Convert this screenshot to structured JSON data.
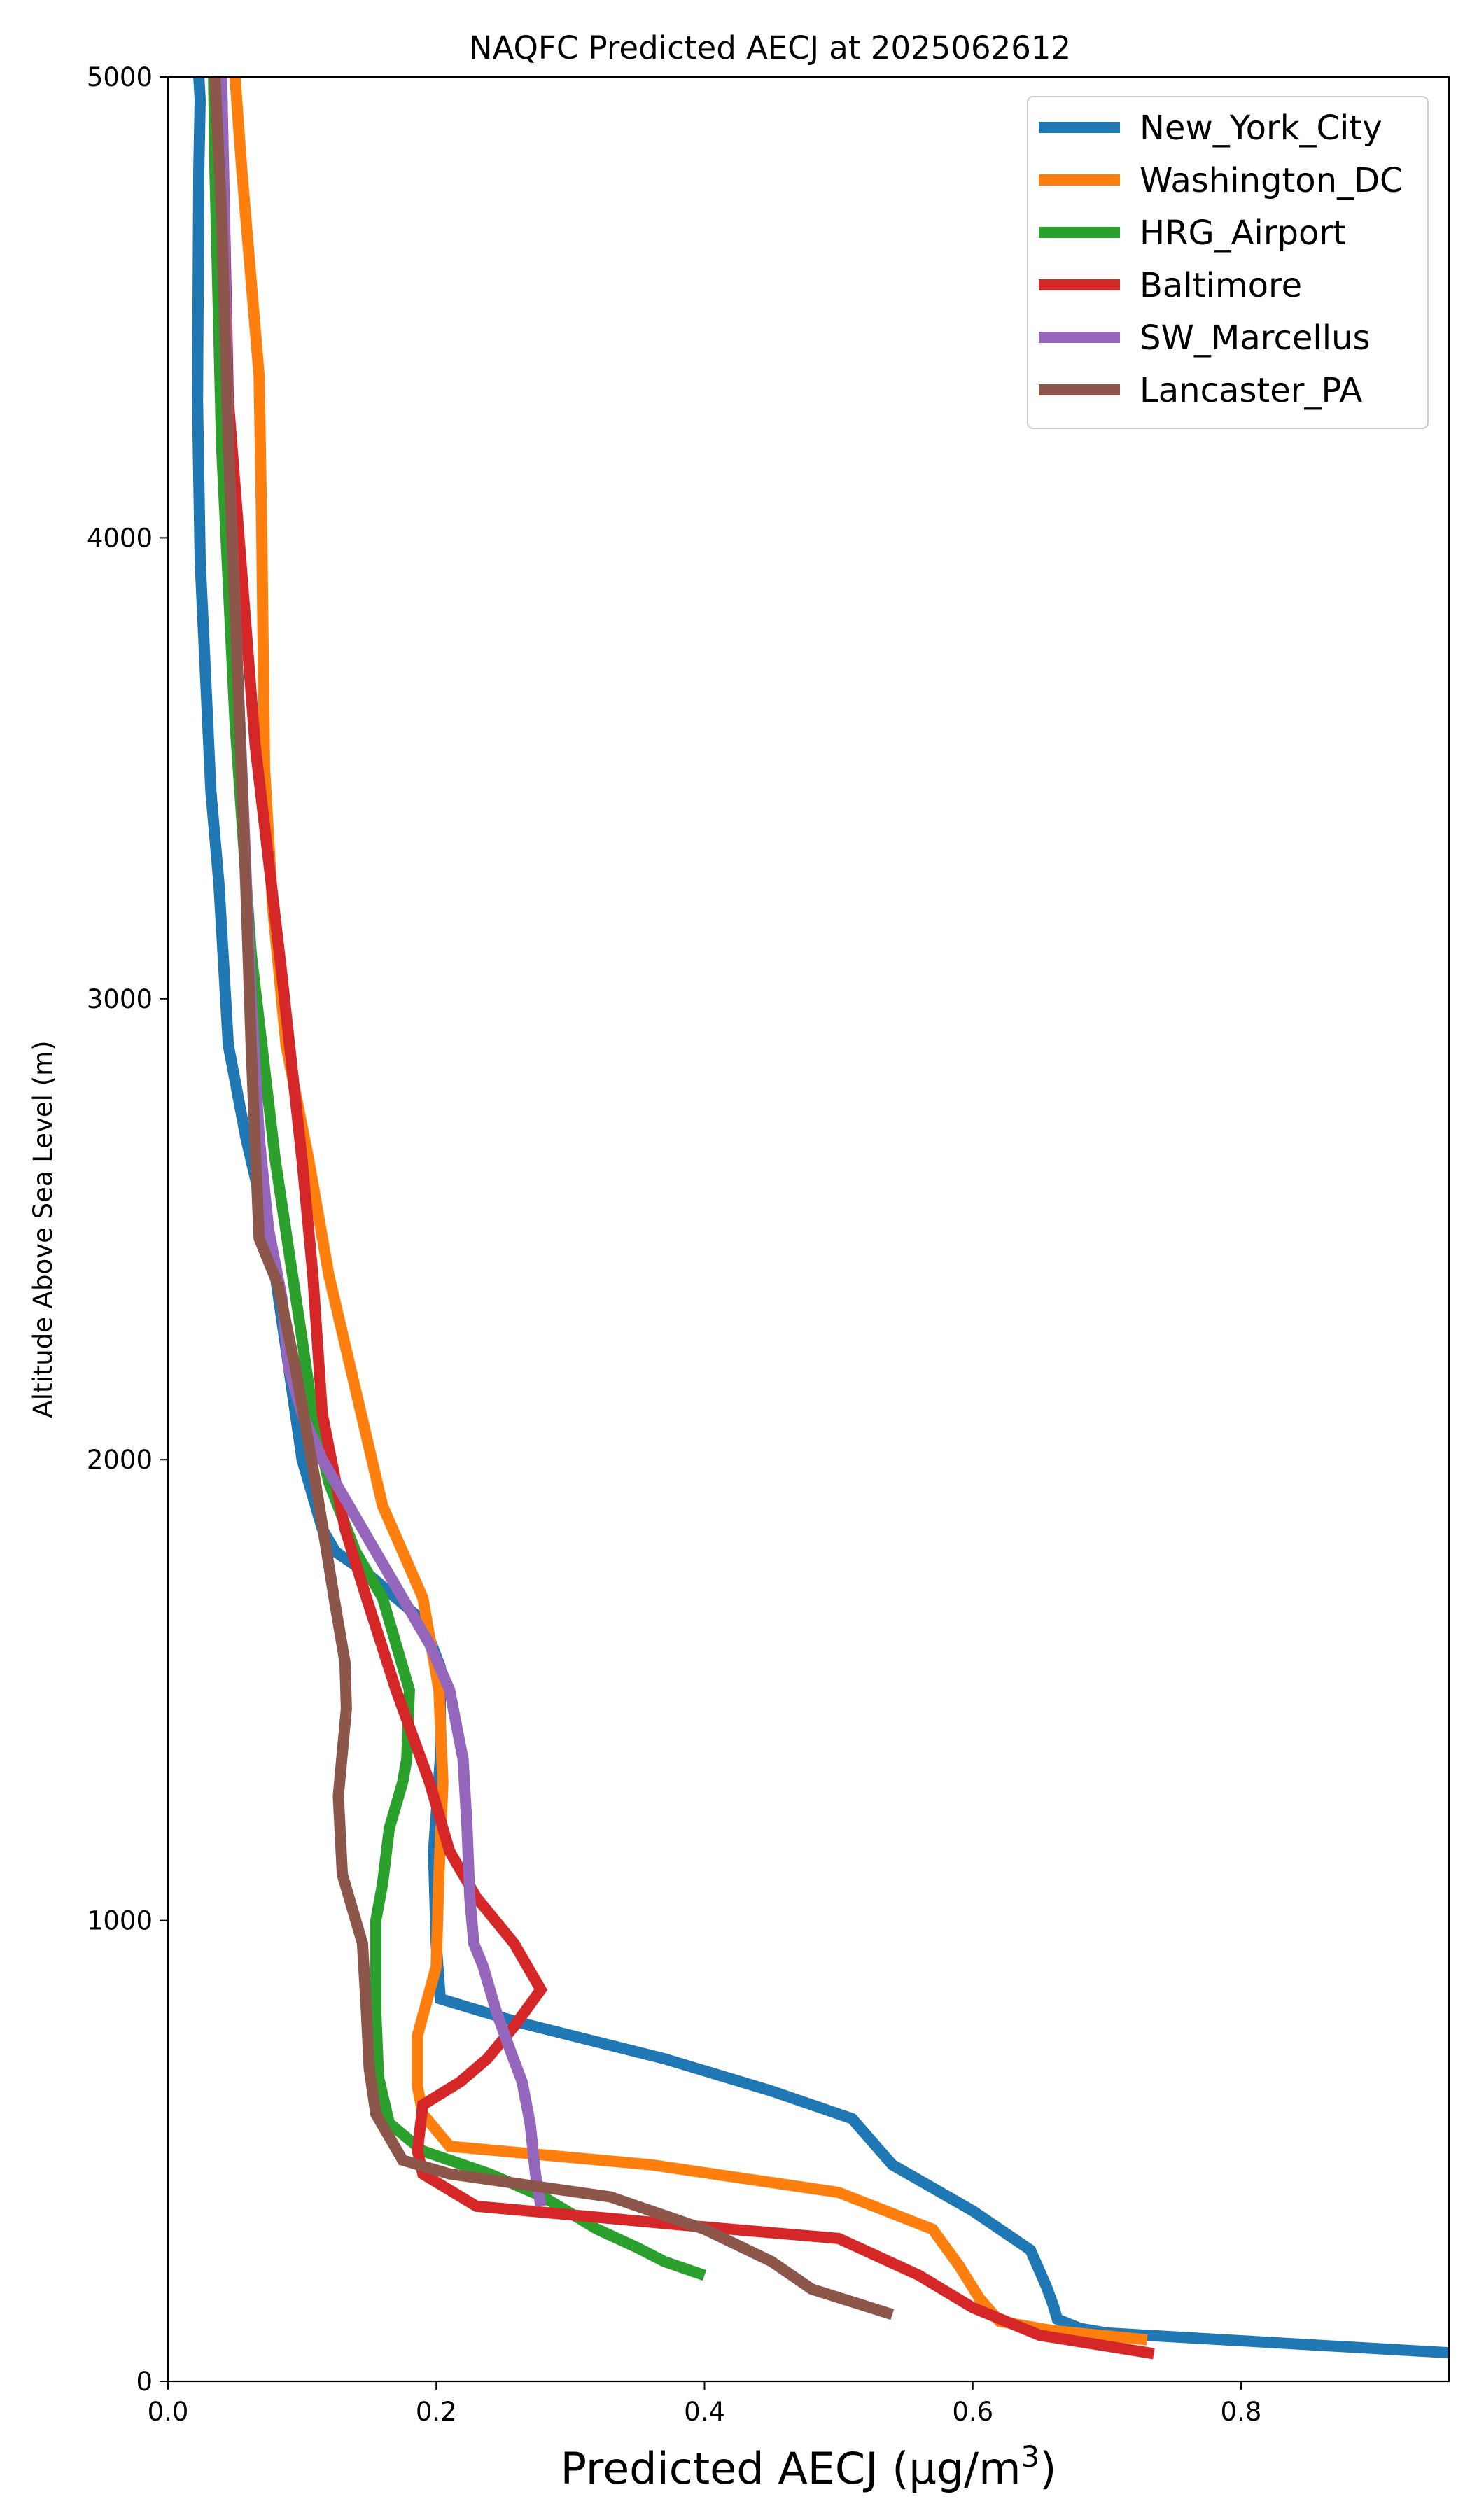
{
  "chart_data": {
    "type": "line",
    "title": "NAQFC Predicted AECJ at 2025062612",
    "xlabel": "Predicted AECJ (μg/m³)",
    "ylabel": "Altitude Above Sea Level (m)",
    "xlim": [
      0,
      0.955
    ],
    "ylim": [
      0,
      5000
    ],
    "xticks": [
      "0.0",
      "0.2",
      "0.4",
      "0.6",
      "0.8"
    ],
    "yticks": [
      "0",
      "1000",
      "2000",
      "3000",
      "4000",
      "5000"
    ],
    "grid": false,
    "legend_position": "top-right",
    "series": [
      {
        "name": "New_York_City",
        "color": "#1f77b4",
        "x": [
          0.955,
          0.7,
          0.68,
          0.663,
          0.66,
          0.655,
          0.643,
          0.6,
          0.54,
          0.51,
          0.45,
          0.37,
          0.26,
          0.203,
          0.2,
          0.198,
          0.203,
          0.203,
          0.19,
          0.15,
          0.125,
          0.115,
          0.1,
          0.09,
          0.08,
          0.07,
          0.058,
          0.045,
          0.042,
          0.038,
          0.032,
          0.028,
          0.024,
          0.022,
          0.023,
          0.024,
          0.023
        ],
        "y": [
          62,
          105,
          115,
          135,
          165,
          205,
          285,
          370,
          470,
          570,
          630,
          700,
          780,
          830,
          950,
          1150,
          1350,
          1550,
          1650,
          1750,
          1800,
          1850,
          2000,
          2200,
          2400,
          2550,
          2700,
          2900,
          3050,
          3250,
          3450,
          3700,
          3950,
          4300,
          4800,
          4950,
          5000
        ]
      },
      {
        "name": "Washington_DC",
        "color": "#ff7f0e",
        "x": [
          0.73,
          0.66,
          0.62,
          0.605,
          0.59,
          0.57,
          0.5,
          0.36,
          0.21,
          0.19,
          0.186,
          0.186,
          0.2,
          0.202,
          0.205,
          0.202,
          0.19,
          0.16,
          0.14,
          0.12,
          0.105,
          0.088,
          0.078,
          0.072,
          0.07,
          0.068,
          0.055,
          0.05
        ],
        "y": [
          90,
          110,
          130,
          180,
          250,
          330,
          410,
          470,
          510,
          580,
          640,
          750,
          900,
          1100,
          1300,
          1500,
          1700,
          1900,
          2150,
          2400,
          2650,
          2900,
          3200,
          3500,
          4000,
          4350,
          4800,
          5000
        ]
      },
      {
        "name": "HRG_Airport",
        "color": "#2ca02c",
        "x": [
          0.4,
          0.37,
          0.35,
          0.32,
          0.28,
          0.24,
          0.21,
          0.19,
          0.165,
          0.157,
          0.155,
          0.155,
          0.16,
          0.165,
          0.175,
          0.178,
          0.18,
          0.17,
          0.16,
          0.14,
          0.12,
          0.108,
          0.098,
          0.08,
          0.062,
          0.05,
          0.04,
          0.035,
          0.034
        ],
        "y": [
          230,
          260,
          290,
          330,
          400,
          450,
          480,
          500,
          560,
          660,
          800,
          1000,
          1080,
          1200,
          1300,
          1350,
          1500,
          1600,
          1700,
          1800,
          1950,
          2100,
          2300,
          2650,
          3100,
          3600,
          4200,
          4800,
          5000
        ]
      },
      {
        "name": "Baltimore",
        "color": "#d62728",
        "x": [
          0.735,
          0.65,
          0.6,
          0.56,
          0.53,
          0.5,
          0.38,
          0.23,
          0.19,
          0.186,
          0.19,
          0.218,
          0.238,
          0.258,
          0.278,
          0.258,
          0.23,
          0.21,
          0.195,
          0.17,
          0.148,
          0.132,
          0.115,
          0.108,
          0.1,
          0.085,
          0.065,
          0.045,
          0.04
        ],
        "y": [
          60,
          100,
          160,
          230,
          270,
          310,
          340,
          380,
          450,
          500,
          600,
          650,
          700,
          770,
          850,
          950,
          1050,
          1150,
          1300,
          1500,
          1700,
          1850,
          2100,
          2400,
          2650,
          3050,
          3550,
          4300,
          5000
        ]
      },
      {
        "name": "SW_Marcellus",
        "color": "#9467bd",
        "x": [
          0.278,
          0.274,
          0.27,
          0.264,
          0.255,
          0.245,
          0.235,
          0.228,
          0.225,
          0.223,
          0.22,
          0.21,
          0.195,
          0.175,
          0.155,
          0.135,
          0.115,
          0.1,
          0.09,
          0.085,
          0.075,
          0.068,
          0.062,
          0.055,
          0.045,
          0.04
        ],
        "y": [
          380,
          450,
          560,
          650,
          720,
          800,
          900,
          950,
          1050,
          1200,
          1350,
          1500,
          1600,
          1700,
          1800,
          1900,
          2000,
          2100,
          2200,
          2350,
          2500,
          2700,
          3000,
          3500,
          4200,
          5000
        ]
      },
      {
        "name": "Lancaster_PA",
        "color": "#8c564b",
        "x": [
          0.54,
          0.48,
          0.45,
          0.4,
          0.33,
          0.21,
          0.175,
          0.155,
          0.15,
          0.148,
          0.145,
          0.13,
          0.127,
          0.133,
          0.132,
          0.125,
          0.11,
          0.095,
          0.082,
          0.068,
          0.065,
          0.062,
          0.058,
          0.052,
          0.045,
          0.04,
          0.035
        ],
        "y": [
          145,
          200,
          260,
          330,
          400,
          450,
          480,
          580,
          680,
          800,
          950,
          1100,
          1270,
          1460,
          1560,
          1680,
          1950,
          2200,
          2380,
          2480,
          2680,
          2900,
          3250,
          3700,
          4200,
          4700,
          5000
        ]
      }
    ]
  }
}
